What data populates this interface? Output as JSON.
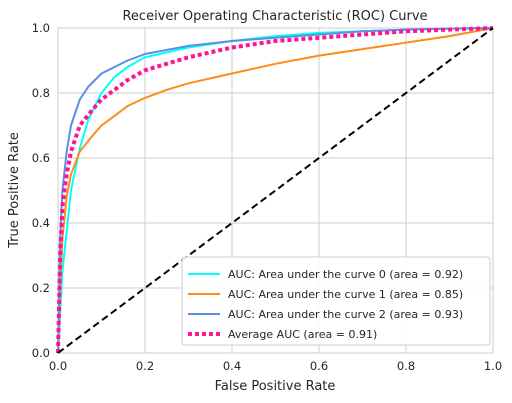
{
  "chart_data": {
    "type": "line",
    "title": "Receiver Operating Characteristic (ROC) Curve",
    "xlabel": "False Positive Rate",
    "ylabel": "True Positive Rate",
    "xlim": [
      0.0,
      1.0
    ],
    "ylim": [
      0.0,
      1.0
    ],
    "xticks": [
      "0.0",
      "0.2",
      "0.4",
      "0.6",
      "0.8",
      "1.0"
    ],
    "yticks": [
      "0.0",
      "0.2",
      "0.4",
      "0.6",
      "0.8",
      "1.0"
    ],
    "grid": true,
    "legend_position": "lower-right",
    "series": [
      {
        "name": "AUC: Area under the curve 0 (area = 0.92)",
        "color": "#00ffff",
        "style": "solid",
        "x": [
          0.0,
          0.01,
          0.03,
          0.05,
          0.07,
          0.1,
          0.13,
          0.16,
          0.2,
          0.3,
          0.4,
          0.5,
          0.6,
          0.7,
          0.8,
          0.9,
          1.0
        ],
        "y": [
          0.0,
          0.25,
          0.5,
          0.63,
          0.72,
          0.8,
          0.85,
          0.88,
          0.91,
          0.94,
          0.96,
          0.975,
          0.985,
          0.99,
          0.995,
          0.998,
          1.0
        ]
      },
      {
        "name": "AUC: Area under the curve 1 (area = 0.85)",
        "color": "#ff8c1a",
        "style": "solid",
        "x": [
          0.0,
          0.005,
          0.01,
          0.02,
          0.03,
          0.05,
          0.08,
          0.1,
          0.13,
          0.16,
          0.2,
          0.25,
          0.3,
          0.4,
          0.5,
          0.6,
          0.7,
          0.8,
          0.9,
          1.0
        ],
        "y": [
          0.0,
          0.2,
          0.35,
          0.48,
          0.55,
          0.62,
          0.67,
          0.7,
          0.73,
          0.76,
          0.785,
          0.81,
          0.83,
          0.86,
          0.89,
          0.915,
          0.935,
          0.955,
          0.975,
          1.0
        ]
      },
      {
        "name": "AUC: Area under the curve 2 (area = 0.93)",
        "color": "#5a8fe6",
        "style": "solid",
        "x": [
          0.0,
          0.005,
          0.01,
          0.02,
          0.03,
          0.05,
          0.07,
          0.1,
          0.13,
          0.16,
          0.2,
          0.3,
          0.4,
          0.5,
          0.6,
          0.7,
          0.8,
          0.9,
          1.0
        ],
        "y": [
          0.0,
          0.35,
          0.5,
          0.62,
          0.7,
          0.78,
          0.82,
          0.86,
          0.88,
          0.9,
          0.92,
          0.945,
          0.96,
          0.97,
          0.98,
          0.99,
          0.995,
          0.998,
          1.0
        ]
      },
      {
        "name": "Average AUC (area = 0.91)",
        "color": "#ff1493",
        "style": "dotted",
        "x": [
          0.0,
          0.005,
          0.01,
          0.02,
          0.03,
          0.05,
          0.08,
          0.1,
          0.13,
          0.16,
          0.2,
          0.3,
          0.4,
          0.5,
          0.6,
          0.7,
          0.8,
          0.9,
          1.0
        ],
        "y": [
          0.0,
          0.3,
          0.45,
          0.55,
          0.62,
          0.7,
          0.75,
          0.78,
          0.81,
          0.84,
          0.87,
          0.91,
          0.94,
          0.96,
          0.97,
          0.98,
          0.99,
          0.995,
          1.0
        ]
      }
    ],
    "reference_line": {
      "color": "#000000",
      "style": "dashed",
      "x": [
        0.0,
        1.0
      ],
      "y": [
        0.0,
        1.0
      ]
    }
  }
}
